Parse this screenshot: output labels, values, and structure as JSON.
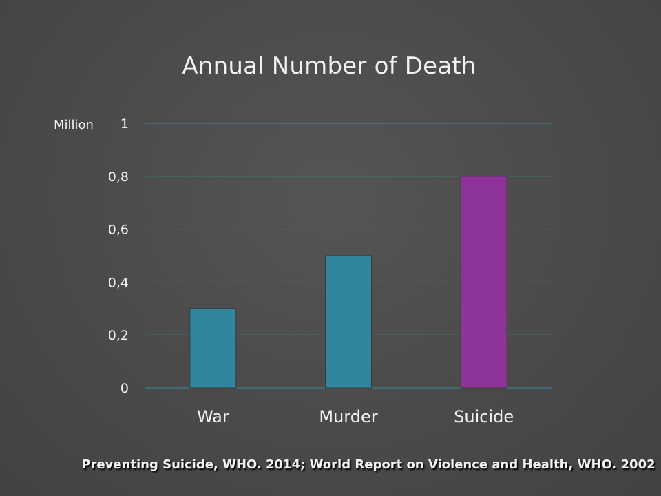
{
  "slide": {
    "title": "Annual Number of Death",
    "unit_label": "Million",
    "source": "Preventing Suicide, WHO. 2014; World Report on Violence and Health, WHO. 2002"
  },
  "chart_data": {
    "type": "bar",
    "title": "Annual Number of Death",
    "xlabel": "",
    "ylabel": "Million",
    "categories": [
      "War",
      "Murder",
      "Suicide"
    ],
    "values": [
      0.3,
      0.5,
      0.8
    ],
    "ylim": [
      0,
      1
    ],
    "yticks": [
      0,
      0.2,
      0.4,
      0.6,
      0.8,
      1
    ],
    "ytick_labels": [
      "0",
      "0,2",
      "0,4",
      "0,6",
      "0,8",
      "1"
    ],
    "bar_colors": [
      "#31859c",
      "#31859c",
      "#8e3399"
    ],
    "grid": true,
    "gridline_color": "#2f8e9c",
    "legend": "none"
  }
}
